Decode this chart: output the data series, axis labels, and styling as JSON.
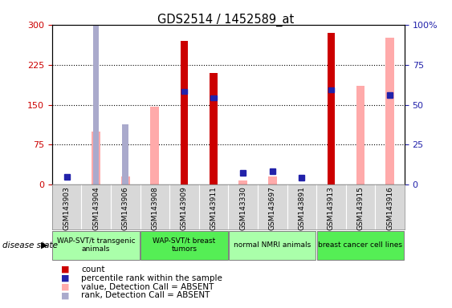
{
  "title": "GDS2514 / 1452589_at",
  "samples": [
    "GSM143903",
    "GSM143904",
    "GSM143906",
    "GSM143908",
    "GSM143909",
    "GSM143911",
    "GSM143330",
    "GSM143697",
    "GSM143891",
    "GSM143913",
    "GSM143915",
    "GSM143916"
  ],
  "count": [
    0,
    0,
    0,
    0,
    270,
    210,
    0,
    0,
    0,
    285,
    0,
    0
  ],
  "percentile_rank": [
    15,
    0,
    0,
    0,
    175,
    163,
    22,
    25,
    13,
    178,
    0,
    168
  ],
  "value_absent": [
    0,
    100,
    15,
    147,
    0,
    0,
    8,
    15,
    0,
    0,
    185,
    275
  ],
  "rank_absent": [
    0,
    130,
    38,
    0,
    0,
    0,
    0,
    0,
    0,
    0,
    0,
    0
  ],
  "groups": [
    {
      "label": "WAP-SVT/t transgenic\nanimals",
      "start": 0,
      "end": 3,
      "color": "#aaffaa"
    },
    {
      "label": "WAP-SVT/t breast\ntumors",
      "start": 3,
      "end": 6,
      "color": "#55ee55"
    },
    {
      "label": "normal NMRI animals",
      "start": 6,
      "end": 9,
      "color": "#aaffaa"
    },
    {
      "label": "breast cancer cell lines",
      "start": 9,
      "end": 12,
      "color": "#55ee55"
    }
  ],
  "ylim_left": [
    0,
    300
  ],
  "ylim_right": [
    0,
    100
  ],
  "yticks_left": [
    0,
    75,
    150,
    225,
    300
  ],
  "yticks_right": [
    0,
    25,
    50,
    75,
    100
  ],
  "left_color": "#cc0000",
  "right_color": "#0000cc",
  "bar_width": 0.35,
  "bg_color": "#d8d8d8",
  "red": "#cc0000",
  "blue": "#2222aa",
  "pink": "#ffaaaa",
  "light_blue": "#aaaacc"
}
